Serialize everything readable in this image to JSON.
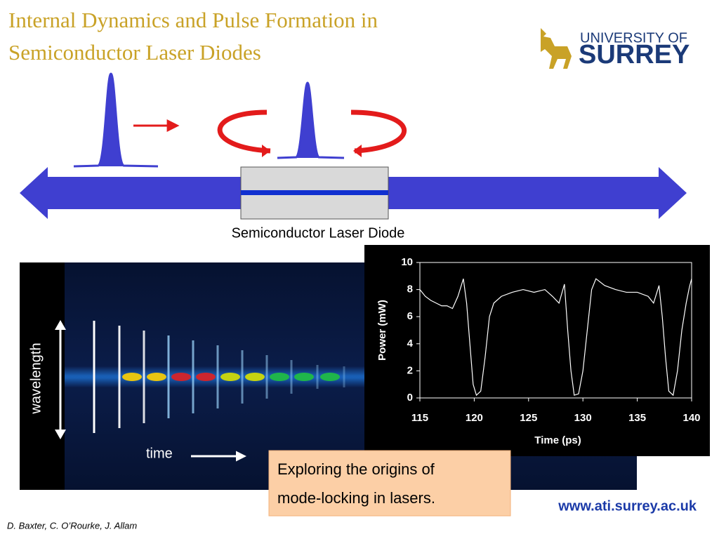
{
  "header": {
    "title_lines": [
      "Internal Dynamics and Pulse Formation in",
      "Semiconductor Laser Diodes"
    ],
    "logo": {
      "line1": "UNIVERSITY OF",
      "line2": "SURREY"
    }
  },
  "diagram": {
    "label": "Semiconductor Laser Diode"
  },
  "spectrogram": {
    "y_label": "wavelength",
    "x_label": "time"
  },
  "chart_data": {
    "type": "line",
    "x_label": "Time (ps)",
    "y_label": "Power (mW)",
    "x": [
      115,
      115.5,
      116,
      116.5,
      117,
      117.5,
      118,
      118.5,
      119,
      119.3,
      119.6,
      119.9,
      120.2,
      120.6,
      121,
      121.4,
      121.8,
      122.5,
      123.5,
      124.5,
      125.5,
      126.5,
      127.2,
      127.8,
      128.3,
      128.6,
      128.9,
      129.2,
      129.6,
      130,
      130.4,
      130.8,
      131.2,
      132,
      133,
      134,
      135,
      136,
      136.5,
      137,
      137.3,
      137.6,
      137.9,
      138.3,
      138.7,
      139.1,
      139.5,
      139.8,
      140
    ],
    "series": [
      {
        "name": "Power",
        "color": "#ffffff",
        "values": [
          8,
          7.5,
          7.2,
          7.0,
          6.8,
          6.8,
          6.6,
          7.5,
          8.8,
          7,
          4,
          1,
          0.2,
          0.5,
          3,
          6,
          7,
          7.5,
          7.8,
          8,
          7.8,
          8,
          7.5,
          7,
          8.4,
          5,
          2,
          0.2,
          0.3,
          2,
          5,
          8,
          8.8,
          8.3,
          8,
          7.8,
          7.8,
          7.5,
          7,
          8.3,
          6,
          3,
          0.5,
          0.2,
          2,
          5,
          7,
          8.2,
          8.8
        ]
      }
    ],
    "xlim": [
      115,
      140
    ],
    "ylim": [
      0,
      10
    ],
    "xticks": [
      115,
      120,
      125,
      130,
      135,
      140
    ],
    "yticks": [
      0,
      2,
      4,
      6,
      8,
      10
    ]
  },
  "callout": {
    "lines": [
      "Exploring the origins of",
      "mode-locking in lasers."
    ]
  },
  "url": "www.ati.surrey.ac.uk",
  "authors": "D. Baxter, C. O’Rourke, J. Allam"
}
